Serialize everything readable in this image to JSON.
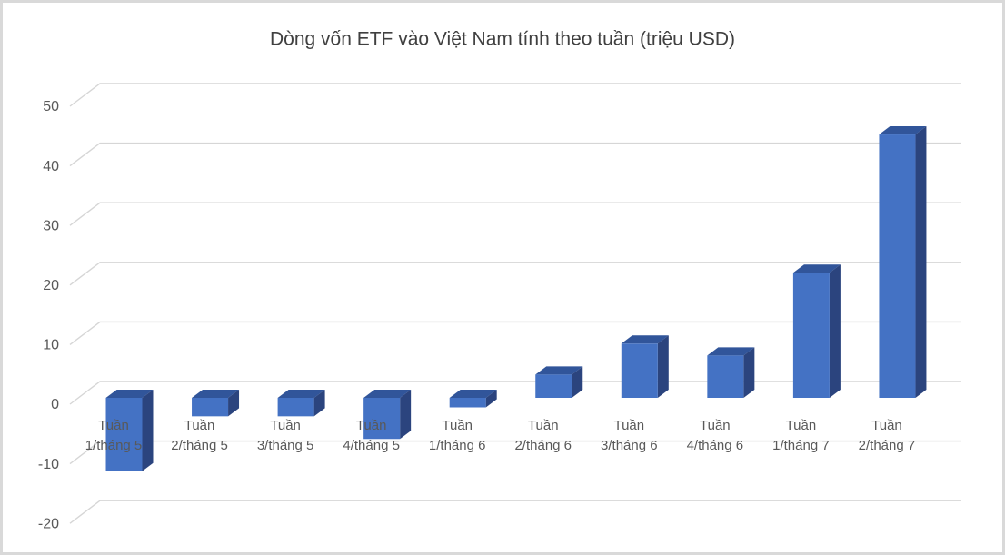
{
  "frame": {
    "background": "#FFFFFF",
    "border_color": "#D9D9D9",
    "border_width": 3
  },
  "chart_data": {
    "type": "bar",
    "style": "3d-column",
    "title": "Dòng vốn ETF vào Việt Nam tính theo tuần (triệu USD)",
    "categories": [
      "Tuần 1/tháng 5",
      "Tuần 2/tháng 5",
      "Tuần 3/tháng 5",
      "Tuần 4/tháng 5",
      "Tuần 1/tháng 6",
      "Tuần 2/tháng 6",
      "Tuần 3/tháng 6",
      "Tuần 4/tháng 6",
      "Tuần 1/tháng 7",
      "Tuần 2/tháng 7"
    ],
    "category_label_lines": [
      [
        "Tuần",
        "1/tháng 5"
      ],
      [
        "Tuần",
        "2/tháng 5"
      ],
      [
        "Tuần",
        "3/tháng 5"
      ],
      [
        "Tuần",
        "4/tháng 5"
      ],
      [
        "Tuần",
        "1/tháng 6"
      ],
      [
        "Tuần",
        "2/tháng 6"
      ],
      [
        "Tuần",
        "3/tháng 6"
      ],
      [
        "Tuần",
        "4/tháng 6"
      ],
      [
        "Tuần",
        "1/tháng 7"
      ],
      [
        "Tuần",
        "2/tháng 7"
      ]
    ],
    "values": [
      -12.3,
      -3.1,
      -3.1,
      -6.9,
      -1.6,
      3.9,
      9.1,
      7.1,
      21.0,
      44.2
    ],
    "yticks": [
      50,
      40,
      30,
      20,
      10,
      0,
      -10,
      -20
    ],
    "ylim": [
      -20,
      50
    ],
    "xlabel": "",
    "ylabel": "",
    "grid": true,
    "legend": "none",
    "colors": {
      "bar_front": "#4472C4",
      "bar_top": "#31559A",
      "bar_side": "#2B447E",
      "gridline": "#D6D6D6",
      "axis_text": "#595959",
      "title_text": "#404040"
    }
  }
}
